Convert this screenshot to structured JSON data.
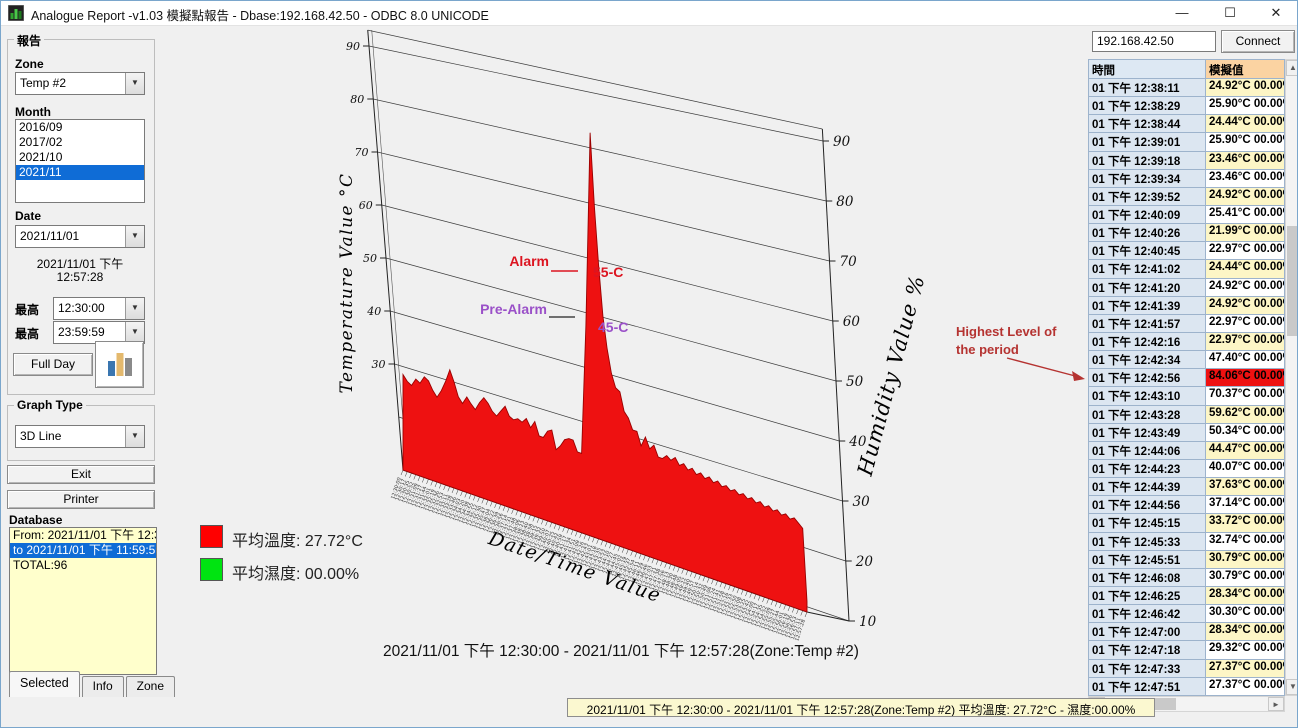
{
  "window": {
    "title": "Analogue Report -v1.03  模擬點報告  - Dbase:192.168.42.50 - ODBC 8.0 UNICODE",
    "controls": {
      "minimize": "—",
      "maximize": "☐",
      "close": "✕"
    }
  },
  "sidebar": {
    "group_report_label": "報告",
    "zone_label": "Zone",
    "zone_value": "Temp #2",
    "month_label": "Month",
    "months": [
      "2016/09",
      "2017/02",
      "2021/10",
      "2021/11"
    ],
    "month_selected": "2021/11",
    "date_label": "Date",
    "date_value": "2021/11/01",
    "current_datetime_line1": "2021/11/01 下午",
    "current_datetime_line2": "12:57:28",
    "time_from_label": "最高",
    "time_from_value": "12:30:00",
    "time_to_label": "最高",
    "time_to_value": "23:59:59",
    "full_day_button": "Full Day",
    "graph_type_group_label": "Graph Type",
    "graph_type_value": "3D Line",
    "exit_button": "Exit",
    "printer_button": "Printer",
    "database_label": "Database",
    "database_items": [
      "From: 2021/11/01 下午 12:30:00",
      "to 2021/11/01 下午 11:59:59",
      "TOTAL:96"
    ],
    "database_selected_index": 1,
    "tabs": [
      "Selected",
      "Info",
      "Zone"
    ],
    "active_tab": "Selected"
  },
  "connection": {
    "ip_value": "192.168.42.50",
    "connect_button": "Connect"
  },
  "table": {
    "columns": [
      "時間",
      "模擬值"
    ],
    "rows": [
      {
        "time": "01 下午 12:38:11",
        "value": "24.92°C 00.00%",
        "alarm": false
      },
      {
        "time": "01 下午 12:38:29",
        "value": "25.90°C 00.00%",
        "alarm": false
      },
      {
        "time": "01 下午 12:38:44",
        "value": "24.44°C 00.00%",
        "alarm": false
      },
      {
        "time": "01 下午 12:39:01",
        "value": "25.90°C 00.00%",
        "alarm": false
      },
      {
        "time": "01 下午 12:39:18",
        "value": "23.46°C 00.00%",
        "alarm": false
      },
      {
        "time": "01 下午 12:39:34",
        "value": "23.46°C 00.00%",
        "alarm": false
      },
      {
        "time": "01 下午 12:39:52",
        "value": "24.92°C 00.00%",
        "alarm": false
      },
      {
        "time": "01 下午 12:40:09",
        "value": "25.41°C 00.00%",
        "alarm": false
      },
      {
        "time": "01 下午 12:40:26",
        "value": "21.99°C 00.00%",
        "alarm": false
      },
      {
        "time": "01 下午 12:40:45",
        "value": "22.97°C 00.00%",
        "alarm": false
      },
      {
        "time": "01 下午 12:41:02",
        "value": "24.44°C 00.00%",
        "alarm": false
      },
      {
        "time": "01 下午 12:41:20",
        "value": "24.92°C 00.00%",
        "alarm": false
      },
      {
        "time": "01 下午 12:41:39",
        "value": "24.92°C 00.00%",
        "alarm": false
      },
      {
        "time": "01 下午 12:41:57",
        "value": "22.97°C 00.00%",
        "alarm": false
      },
      {
        "time": "01 下午 12:42:16",
        "value": "22.97°C 00.00%",
        "alarm": false
      },
      {
        "time": "01 下午 12:42:34",
        "value": "47.40°C 00.00%",
        "alarm": false
      },
      {
        "time": "01 下午 12:42:56",
        "value": "84.06°C 00.00%",
        "alarm": true
      },
      {
        "time": "01 下午 12:43:10",
        "value": "70.37°C 00.00%",
        "alarm": false
      },
      {
        "time": "01 下午 12:43:28",
        "value": "59.62°C 00.00%",
        "alarm": false
      },
      {
        "time": "01 下午 12:43:49",
        "value": "50.34°C 00.00%",
        "alarm": false
      },
      {
        "time": "01 下午 12:44:06",
        "value": "44.47°C 00.00%",
        "alarm": false
      },
      {
        "time": "01 下午 12:44:23",
        "value": "40.07°C 00.00%",
        "alarm": false
      },
      {
        "time": "01 下午 12:44:39",
        "value": "37.63°C 00.00%",
        "alarm": false
      },
      {
        "time": "01 下午 12:44:56",
        "value": "37.14°C 00.00%",
        "alarm": false
      },
      {
        "time": "01 下午 12:45:15",
        "value": "33.72°C 00.00%",
        "alarm": false
      },
      {
        "time": "01 下午 12:45:33",
        "value": "32.74°C 00.00%",
        "alarm": false
      },
      {
        "time": "01 下午 12:45:51",
        "value": "30.79°C 00.00%",
        "alarm": false
      },
      {
        "time": "01 下午 12:46:08",
        "value": "30.79°C 00.00%",
        "alarm": false
      },
      {
        "time": "01 下午 12:46:25",
        "value": "28.34°C 00.00%",
        "alarm": false
      },
      {
        "time": "01 下午 12:46:42",
        "value": "30.30°C 00.00%",
        "alarm": false
      },
      {
        "time": "01 下午 12:47:00",
        "value": "28.34°C 00.00%",
        "alarm": false
      },
      {
        "time": "01 下午 12:47:18",
        "value": "29.32°C 00.00%",
        "alarm": false
      },
      {
        "time": "01 下午 12:47:33",
        "value": "27.37°C 00.00%",
        "alarm": false
      },
      {
        "time": "01 下午 12:47:51",
        "value": "27.37°C 00.00%",
        "alarm": false
      }
    ]
  },
  "legend": {
    "avg_temp_color": "#ff0000",
    "avg_temp_label": "平均溫度: 27.72°C",
    "avg_hum_color": "#00e411",
    "avg_hum_label": "平均濕度: 00.00%"
  },
  "chart_data": {
    "type": "area",
    "caption": "2021/11/01 下午 12:30:00 - 2021/11/01 下午 12:57:28(Zone:Temp #2)",
    "x_label": "Date/Time Value",
    "y_left_label": "Temperature Value °C",
    "y_right_label": "Humidity Value %",
    "x_start": "12:30:00",
    "x_end": "12:57:28",
    "x_count": 96,
    "y_left_ticks": [
      90,
      80,
      70,
      60,
      50,
      40,
      30
    ],
    "y_right_ticks": [
      90,
      80,
      70,
      60,
      50,
      40,
      30,
      20,
      10
    ],
    "alarm_level": 55,
    "prealarm_level": 45,
    "peak": {
      "time": "12:42:56",
      "value": 84.06
    },
    "series": [
      {
        "name": "溫度 °C",
        "color": "#ee1111",
        "values": [
          26,
          25,
          24.5,
          26,
          25.5,
          27,
          26.5,
          25,
          24,
          25.5,
          27.5,
          30,
          28,
          25.5,
          24.5,
          26,
          25,
          24.2,
          25.8,
          27,
          26.2,
          25,
          24.4,
          25.6,
          26.8,
          25.2,
          24.8,
          25.3,
          24.92,
          25.9,
          24.44,
          25.9,
          23.46,
          23.46,
          24.92,
          25.41,
          21.99,
          22.97,
          24.44,
          24.92,
          24.92,
          22.97,
          22.97,
          47.4,
          84.06,
          70.37,
          59.62,
          50.34,
          44.47,
          40.07,
          37.63,
          37.14,
          33.72,
          32.74,
          30.79,
          30.79,
          28.34,
          30.3,
          28.34,
          29.32,
          27.37,
          27.37,
          28.2,
          27.6,
          28.4,
          27.2,
          27.8,
          26.9,
          27.5,
          26.6,
          27.2,
          26.4,
          27,
          26.2,
          26.8,
          26,
          26.5,
          25.8,
          26.3,
          25.6,
          26.1,
          25.4,
          25.9,
          25.2,
          25.7,
          25,
          25.5,
          24.8,
          25.3,
          24.6,
          25.1,
          24.4,
          24.9,
          24.2,
          23.5,
          10
        ]
      },
      {
        "name": "濕度 %",
        "color": "#00e411",
        "values_constant": 0
      }
    ],
    "annotations": {
      "alarm_label": "Alarm",
      "alarm_level_label": "55-C",
      "alarm_color": "#dc1420",
      "prealarm_label": "Pre-Alarm",
      "prealarm_level_label": "45-C",
      "prealarm_color": "#9a50c8",
      "highest_line1": "Highest Level of",
      "highest_line2": "the period",
      "highest_color": "#b53331"
    }
  },
  "statusbar": {
    "text": "2021/11/01 下午 12:30:00 - 2021/11/01 下午 12:57:28(Zone:Temp #2) 平均溫度: 27.72°C - 濕度:00.00%"
  }
}
